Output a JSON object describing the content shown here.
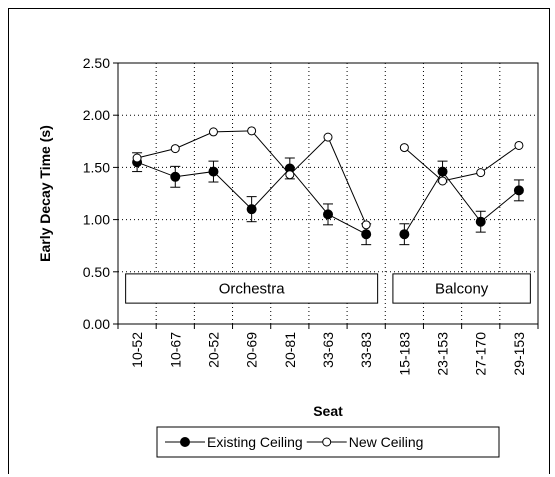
{
  "chart_data": {
    "type": "line",
    "xlabel": "Seat",
    "ylabel": "Early Decay Time (s)",
    "ylim": [
      0,
      2.5
    ],
    "yticks": [
      "0.00",
      "0.50",
      "1.00",
      "1.50",
      "2.00",
      "2.50"
    ],
    "categories": [
      "10-52",
      "10-67",
      "20-52",
      "20-69",
      "20-81",
      "33-63",
      "33-83",
      "15-183",
      "23-153",
      "27-170",
      "29-153"
    ],
    "grid": true,
    "legend_position": "bottom",
    "groups": [
      {
        "label": "Orchestra",
        "indices": [
          0,
          1,
          2,
          3,
          4,
          5,
          6
        ]
      },
      {
        "label": "Balcony",
        "indices": [
          7,
          8,
          9,
          10
        ]
      }
    ],
    "series": [
      {
        "name": "Existing Ceiling",
        "marker": "filled-circle",
        "color": "#000000",
        "values": [
          1.55,
          1.41,
          1.46,
          1.1,
          1.49,
          1.05,
          0.86,
          0.86,
          1.46,
          0.98,
          1.28
        ],
        "error": [
          0.09,
          0.1,
          0.1,
          0.12,
          0.1,
          0.1,
          0.1,
          0.1,
          0.1,
          0.1,
          0.1
        ]
      },
      {
        "name": "New Ceiling",
        "marker": "open-circle",
        "color": "#000000",
        "values": [
          1.59,
          1.68,
          1.84,
          1.85,
          1.43,
          1.79,
          0.95,
          1.69,
          1.37,
          1.45,
          1.71
        ],
        "error": [
          0,
          0,
          0,
          0,
          0,
          0,
          0,
          0,
          0,
          0,
          0
        ]
      }
    ]
  }
}
